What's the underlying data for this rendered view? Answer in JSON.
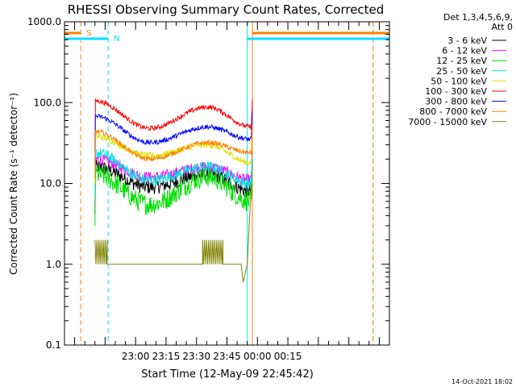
{
  "chart_data": {
    "type": "line",
    "title": "RHESSI Observing Summary Count Rates, Corrected",
    "xlabel": "Start Time (12-May-09 22:45:42)",
    "ylabel": "Corrected Count Rate (s⁻¹ detector⁻¹)",
    "yscale": "log",
    "ylim": [
      0.1,
      1000
    ],
    "y_ticks": [
      "0.1",
      "1.0",
      "10.0",
      "100.0",
      "1000.0"
    ],
    "x_range_min": [
      -20,
      140
    ],
    "x_ticks": [
      {
        "label": "23:00",
        "min": 15
      },
      {
        "label": "23:15",
        "min": 30
      },
      {
        "label": "23:30",
        "min": 45
      },
      {
        "label": "23:45",
        "min": 60
      },
      {
        "label": "00:00",
        "min": 75
      },
      {
        "label": "00:15",
        "min": 90
      }
    ],
    "legend_header": [
      "Det 1,3,4,5,6,9,",
      "Att 0"
    ],
    "legend_position": "right",
    "series": [
      {
        "name": "3 - 6 keV",
        "color": "#000000",
        "params": {
          "y_start": 16,
          "y_dip": 9,
          "y_bump": 13,
          "y_end": 8,
          "noise": 0.09
        }
      },
      {
        "name": "6 - 12 keV",
        "color": "#ff00ff",
        "params": {
          "y_start": 20,
          "y_dip": 12,
          "y_bump": 16,
          "y_end": 11,
          "noise": 0.07
        }
      },
      {
        "name": "12 - 25 keV",
        "color": "#00e000",
        "params": {
          "y_start": 13,
          "y_dip": 5.5,
          "y_bump": 12,
          "y_end": 6,
          "noise": 0.13
        }
      },
      {
        "name": "25 - 50 keV",
        "color": "#00e0e0",
        "params": {
          "y_start": 24,
          "y_dip": 11,
          "y_bump": 16,
          "y_end": 10,
          "noise": 0.07
        }
      },
      {
        "name": "50 - 100 keV",
        "color": "#e0e000",
        "params": {
          "y_start": 38,
          "y_dip": 22,
          "y_bump": 30,
          "y_end": 18,
          "noise": 0.04
        }
      },
      {
        "name": "100 - 300 keV",
        "color": "#ff0000",
        "params": {
          "y_start": 105,
          "y_dip": 48,
          "y_bump": 88,
          "y_end": 50,
          "noise": 0.03
        }
      },
      {
        "name": "300 - 800 keV",
        "color": "#0000ff",
        "params": {
          "y_start": 68,
          "y_dip": 32,
          "y_bump": 50,
          "y_end": 35,
          "noise": 0.03
        }
      },
      {
        "name": "800 - 7000 keV",
        "color": "#ff8000",
        "params": {
          "y_start": 44,
          "y_dip": 20,
          "y_bump": 32,
          "y_end": 24,
          "noise": 0.03
        }
      },
      {
        "name": "7000 - 15000 keV",
        "color": "#808000",
        "params": {
          "binary": true
        }
      }
    ],
    "flags": {
      "saa": {
        "label": "S",
        "color": "#ff8000",
        "ranges_min": [
          [
            -20,
            -12
          ],
          [
            72.5,
            140
          ]
        ]
      },
      "night": {
        "label": "N",
        "color": "#00e0ff",
        "ranges_min": [
          [
            -20,
            1.5
          ],
          [
            70,
            140
          ]
        ]
      }
    },
    "vertical_markers_min": [
      {
        "min": -12,
        "color": "#ff8000",
        "style": "dashed"
      },
      {
        "min": 1.5,
        "color": "#00e0ff",
        "style": "dashed"
      },
      {
        "min": 70,
        "color": "#00e0ff",
        "style": "solid"
      },
      {
        "min": 72.5,
        "color": "#ff8000",
        "style": "solid"
      },
      {
        "min": 132,
        "color": "#00e0ff",
        "style": "dashed"
      },
      {
        "min": 132,
        "color": "#ff8000",
        "style": "dashed"
      }
    ],
    "data_span_min": [
      -5,
      72
    ],
    "timestamp": "14-Oct-2021 18:02"
  }
}
